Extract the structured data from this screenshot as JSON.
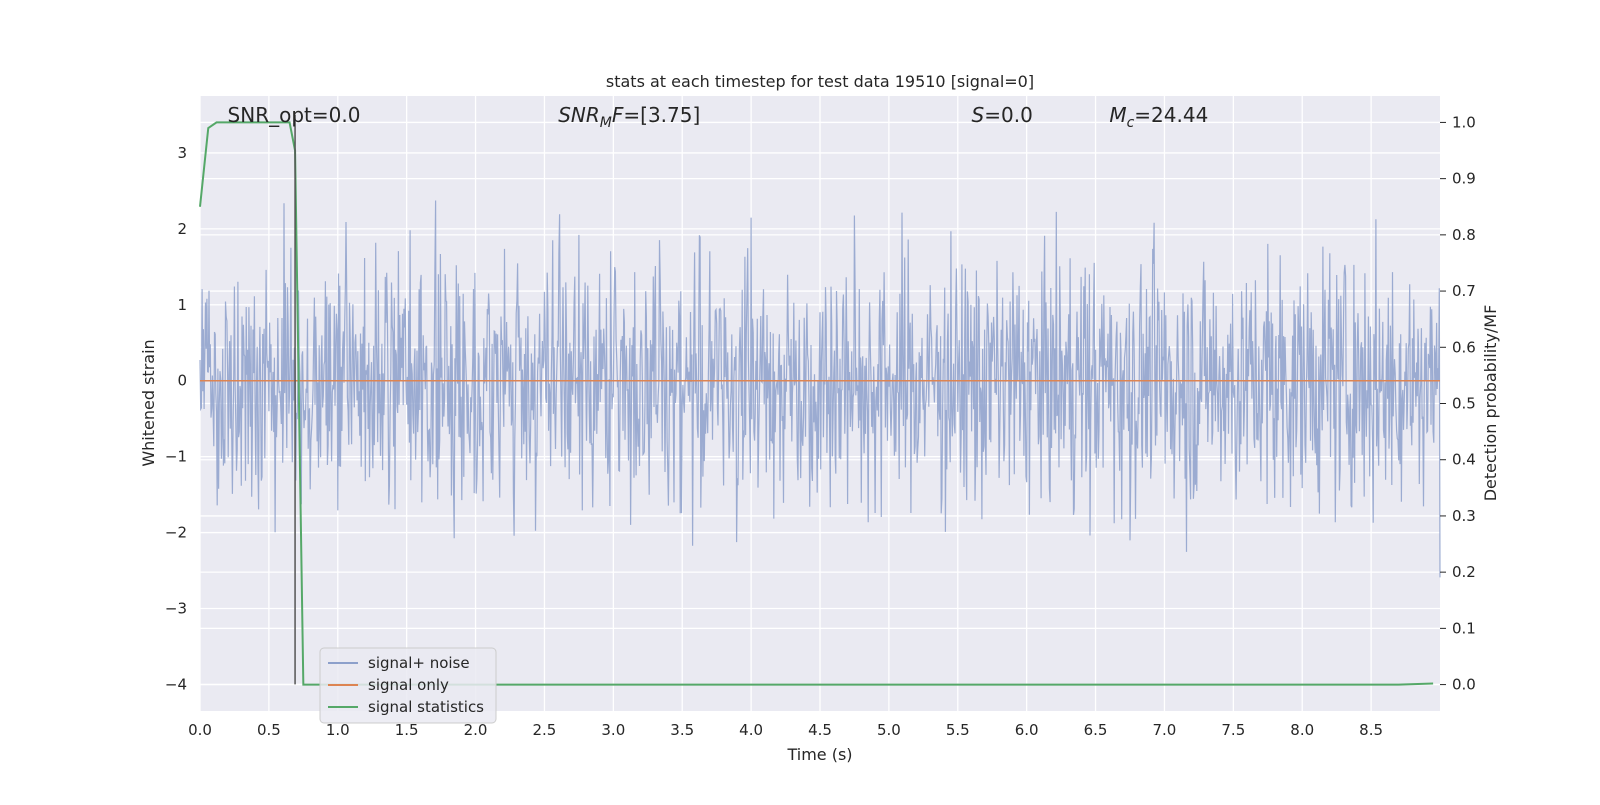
{
  "chart_data": {
    "type": "line",
    "title": "stats at each timestep for test data 19510 [signal=0]",
    "xlabel": "Time (s)",
    "ylabel": "Whitened strain",
    "y2label": "Detection probability/MF",
    "xlim": [
      0.0,
      9.0
    ],
    "ylim": [
      -4.35,
      3.75
    ],
    "y2lim": [
      -0.047,
      1.047
    ],
    "x_ticks": [
      0.0,
      0.5,
      1.0,
      1.5,
      2.0,
      2.5,
      3.0,
      3.5,
      4.0,
      4.5,
      5.0,
      5.5,
      6.0,
      6.5,
      7.0,
      7.5,
      8.0,
      8.5
    ],
    "x_tick_labels": [
      "0.0",
      "0.5",
      "1.0",
      "1.5",
      "2.0",
      "2.5",
      "3.0",
      "3.5",
      "4.0",
      "4.5",
      "5.0",
      "5.5",
      "6.0",
      "6.5",
      "7.0",
      "7.5",
      "8.0",
      "8.5"
    ],
    "y_ticks": [
      3,
      2,
      1,
      0,
      -1,
      -2,
      -3,
      -4
    ],
    "y_tick_labels": [
      "3",
      "2",
      "1",
      "0",
      "−1",
      "−2",
      "−3",
      "−4"
    ],
    "y2_ticks": [
      1.0,
      0.9,
      0.8,
      0.7,
      0.6,
      0.5,
      0.4,
      0.3,
      0.2,
      0.1,
      0.0
    ],
    "y2_tick_labels": [
      "1.0",
      "0.9",
      "0.8",
      "0.7",
      "0.6",
      "0.5",
      "0.4",
      "0.3",
      "0.2",
      "0.1",
      "0.0"
    ],
    "grid": true,
    "legend_position": "lower-left",
    "annotations": [
      {
        "parts": [
          {
            "t": "SNR_opt=0.0",
            "i": false
          }
        ],
        "x": 0.2,
        "y": 3.5
      },
      {
        "parts": [
          {
            "t": "SNR",
            "i": true
          },
          {
            "t": "M",
            "i": true,
            "sub": true
          },
          {
            "t": "F",
            "i": true
          },
          {
            "t": "=[3.75]",
            "i": false
          }
        ],
        "x": 2.6,
        "y": 3.5
      },
      {
        "parts": [
          {
            "t": "S",
            "i": true
          },
          {
            "t": "=0.0",
            "i": false
          }
        ],
        "x": 5.6,
        "y": 3.5
      },
      {
        "parts": [
          {
            "t": "M",
            "i": true
          },
          {
            "t": "c",
            "i": true,
            "sub": true
          },
          {
            "t": "=24.44",
            "i": false
          }
        ],
        "x": 6.6,
        "y": 3.5
      }
    ],
    "vline": {
      "x": 0.69,
      "ymin": -4.0,
      "ymax": 3.5,
      "color": "#555555"
    },
    "series": [
      {
        "name": "signal+ noise",
        "color": "#8da0cb",
        "axis": "left",
        "noise": {
          "samples": 1800,
          "sigma": 0.82,
          "clip_max": 3.45,
          "clip_min": -4.0,
          "seed": 19510
        }
      },
      {
        "name": "signal only",
        "color": "#dd8452",
        "axis": "left",
        "x": [
          0.0,
          9.0
        ],
        "values": [
          0.0,
          0.0
        ]
      },
      {
        "name": "signal statistics",
        "color": "#55a868",
        "axis": "right",
        "x": [
          0.0,
          0.06,
          0.12,
          0.2,
          0.3,
          0.4,
          0.5,
          0.6,
          0.65,
          0.69,
          0.75,
          1.0,
          2.0,
          3.0,
          4.0,
          5.0,
          6.0,
          7.0,
          8.0,
          8.7,
          8.95
        ],
        "values": [
          0.85,
          0.99,
          1.0,
          1.0,
          1.0,
          1.0,
          1.0,
          1.0,
          1.0,
          0.95,
          0.0,
          0.0,
          0.0,
          0.0,
          0.0,
          0.0,
          0.0,
          0.0,
          0.0,
          0.0,
          0.002
        ]
      }
    ],
    "colors": {
      "plot_background": "#eaeaf2",
      "grid": "#ffffff"
    }
  }
}
